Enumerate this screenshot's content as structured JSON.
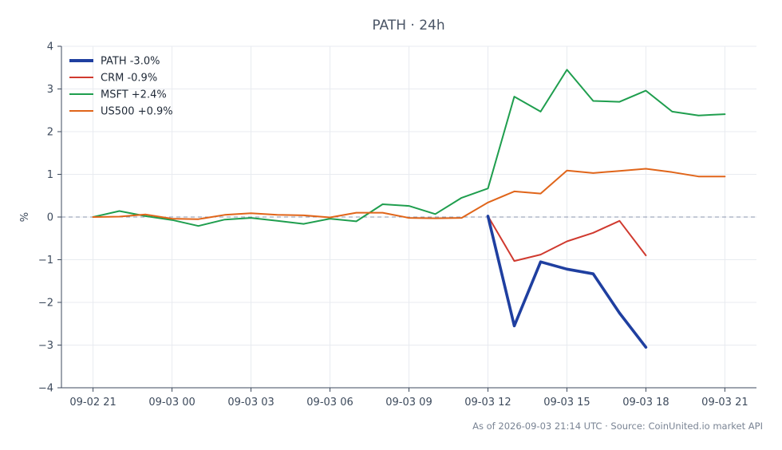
{
  "chart_data": {
    "type": "line",
    "title": "PATH · 24h",
    "xlabel": "",
    "ylabel": "%",
    "ylim": [
      -4,
      4
    ],
    "yticks": [
      -4,
      -3,
      -2,
      -1,
      0,
      1,
      2,
      3,
      4
    ],
    "ytick_labels": [
      "−4",
      "−3",
      "−2",
      "−1",
      "0",
      "1",
      "2",
      "3",
      "4"
    ],
    "x_hours": [
      0,
      1,
      2,
      3,
      4,
      5,
      6,
      7,
      8,
      9,
      10,
      11,
      12,
      13,
      14,
      15,
      16,
      17,
      18,
      19,
      20,
      21,
      22,
      23,
      24
    ],
    "xticks": [
      0,
      3,
      6,
      9,
      12,
      15,
      18,
      21,
      24
    ],
    "xtick_labels": [
      "09-02 21",
      "09-03 00",
      "09-03 03",
      "09-03 06",
      "09-03 09",
      "09-03 12",
      "09-03 15",
      "09-03 18",
      "09-03 21"
    ],
    "grid": true,
    "zero_line": true,
    "legend_position": "top-left",
    "series": [
      {
        "name": "PATH -3.0%",
        "color": "#1f3fa0",
        "emphasis": true,
        "values": [
          null,
          null,
          null,
          null,
          null,
          null,
          null,
          null,
          null,
          null,
          null,
          null,
          null,
          null,
          null,
          0.02,
          -2.55,
          -1.05,
          -1.22,
          -1.33,
          -2.25,
          -3.05,
          null,
          null,
          null
        ]
      },
      {
        "name": "CRM -0.9%",
        "color": "#d03a2f",
        "emphasis": false,
        "values": [
          null,
          null,
          null,
          null,
          null,
          null,
          null,
          null,
          null,
          null,
          null,
          null,
          null,
          null,
          null,
          0.02,
          -1.03,
          -0.88,
          -0.57,
          -0.37,
          -0.09,
          -0.9,
          null,
          null,
          null
        ]
      },
      {
        "name": "MSFT +2.4%",
        "color": "#1f9e4e",
        "emphasis": false,
        "values": [
          0.0,
          0.14,
          0.02,
          -0.07,
          -0.21,
          -0.06,
          -0.02,
          -0.09,
          -0.16,
          -0.04,
          -0.1,
          0.3,
          0.26,
          0.07,
          0.45,
          0.67,
          2.82,
          2.47,
          3.45,
          2.72,
          2.7,
          2.96,
          2.47,
          2.38,
          2.41
        ]
      },
      {
        "name": "US500 +0.9%",
        "color": "#e0651a",
        "emphasis": false,
        "values": [
          0.0,
          0.01,
          0.06,
          -0.04,
          -0.05,
          0.05,
          0.09,
          0.05,
          0.04,
          -0.01,
          0.1,
          0.1,
          -0.02,
          -0.03,
          -0.02,
          0.34,
          0.6,
          0.55,
          1.09,
          1.03,
          1.08,
          1.13,
          1.05,
          0.95,
          0.95
        ]
      }
    ]
  },
  "footer": "As of 2026-09-03 21:14 UTC · Source: CoinUnited.io market API",
  "colors": {
    "zero_line": "#8a94ad",
    "grid": "#e8ebf0",
    "axis": "#3d4a5c"
  }
}
